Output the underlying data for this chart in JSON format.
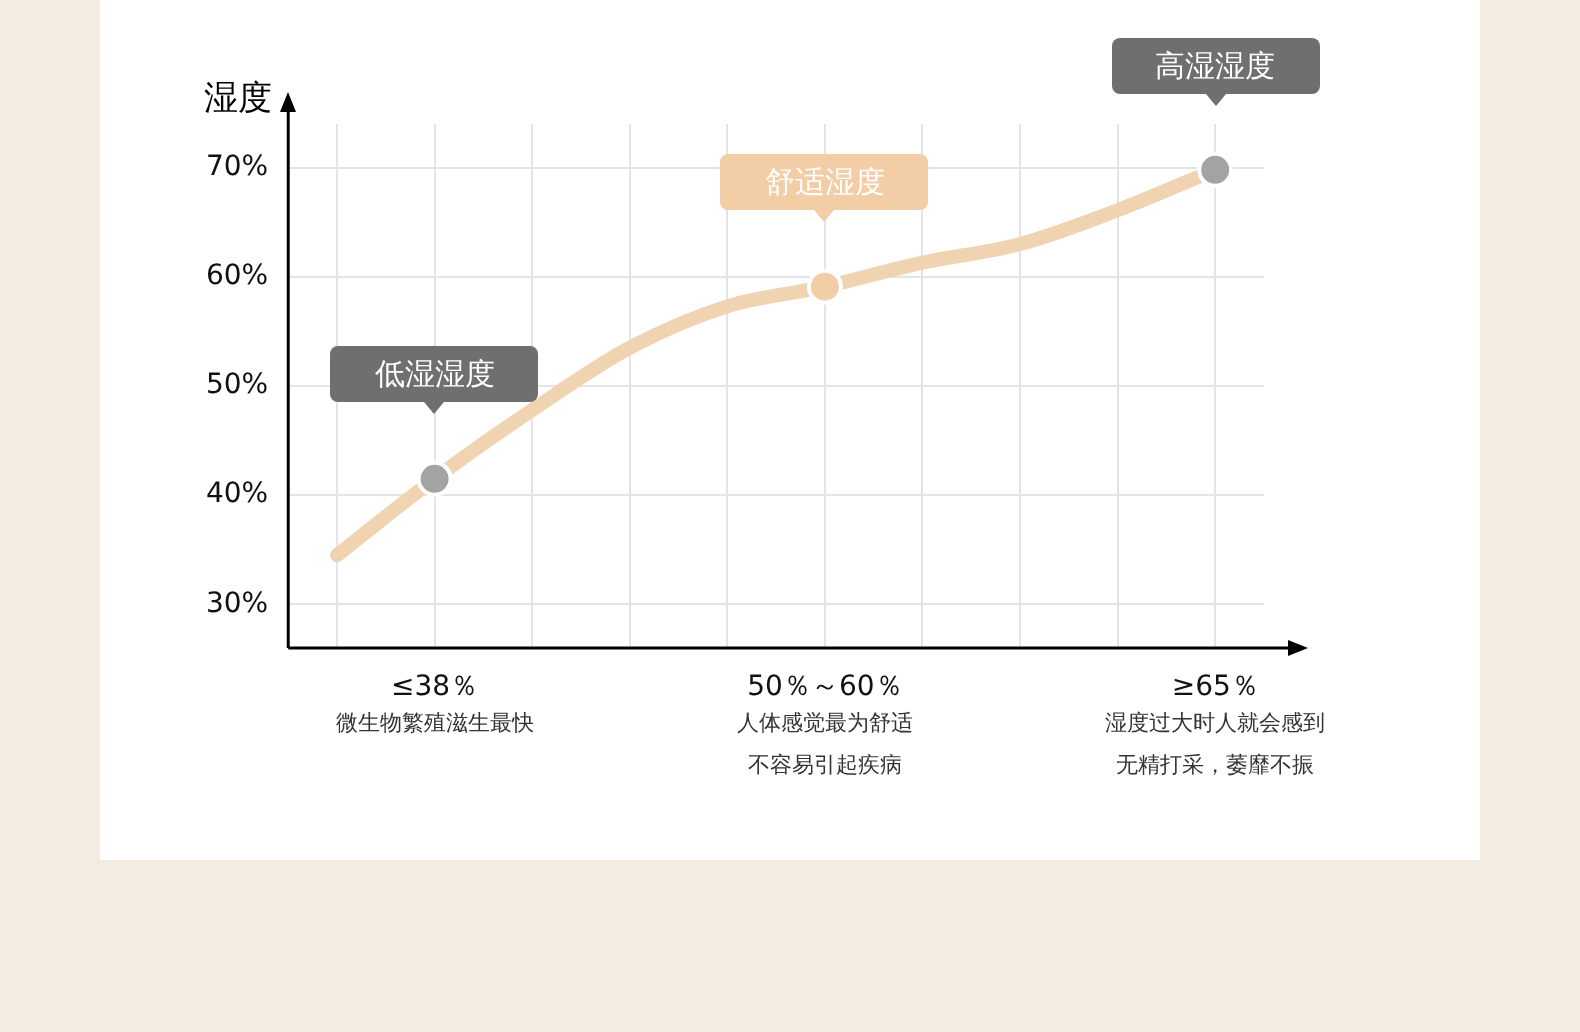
{
  "chart_data": {
    "type": "line",
    "ylabel": "湿度",
    "categories": [
      null,
      "≤38％",
      null,
      null,
      null,
      "50％～60％",
      null,
      null,
      null,
      "≥65％"
    ],
    "series": [
      {
        "color": "#f0d3b0",
        "marker": "none",
        "values": [
          34.5,
          41.5,
          47.8,
          53.5,
          57.3,
          59.1,
          61.3,
          63.0,
          66.1,
          69.8
        ]
      },
      {
        "type": "scatter",
        "marker": "circle",
        "colors": [
          "#a3a3a3",
          "#a3a3a3",
          "#a3a3a3",
          "#a3a3a3",
          "#a3a3a3",
          "#f2cda6",
          "#a3a3a3",
          "#a3a3a3",
          "#a3a3a3",
          "#a3a3a3"
        ],
        "values": [
          null,
          41.5,
          null,
          null,
          null,
          59.1,
          null,
          null,
          null,
          69.8
        ]
      }
    ],
    "ylim": [
      26,
      74
    ],
    "yticks": [
      {
        "value": 30,
        "label": "30%"
      },
      {
        "value": 40,
        "label": "40%"
      },
      {
        "value": 50,
        "label": "50%"
      },
      {
        "value": 60,
        "label": "60%"
      },
      {
        "value": 70,
        "label": "70%"
      }
    ],
    "grid": true,
    "annotations": [
      {
        "text": "低湿湿度",
        "x": "≤38％",
        "y": 41.5
      },
      {
        "text": "舒适湿度",
        "x": "50％～60％",
        "y": 59.1
      },
      {
        "text": "高湿湿度",
        "x": "≥65％",
        "y": 69.8
      },
      "微生物繁殖滋生最快",
      "人体感觉最为舒适",
      "不容易引起疾病",
      "湿度过大时人就会感到",
      "无精打采，萎靡不振"
    ]
  }
}
